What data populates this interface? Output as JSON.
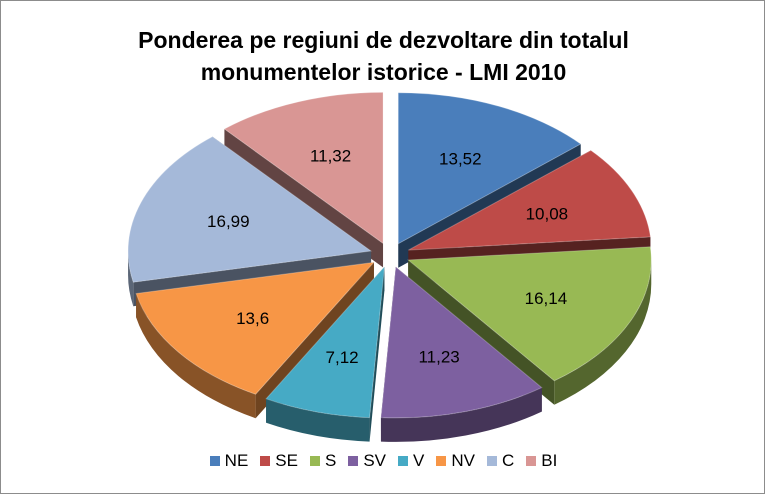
{
  "chart_data": {
    "type": "pie",
    "title_lines": [
      "Ponderea pe regiuni de dezvoltare din totalul",
      "monumentelor istorice - LMI 2010"
    ],
    "categories": [
      "NE",
      "SE",
      "S",
      "SV",
      "V",
      "NV",
      "C",
      "BI"
    ],
    "values": [
      13.52,
      10.08,
      16.14,
      11.23,
      7.12,
      13.6,
      16.99,
      11.32
    ],
    "value_labels": [
      "13,52",
      "10,08",
      "16,14",
      "11,23",
      "7,12",
      "13,6",
      "16,99",
      "11,32"
    ],
    "colors": [
      "#4a7ebb",
      "#be4b48",
      "#98b954",
      "#7d60a0",
      "#46aac5",
      "#f79646",
      "#a5b9d9",
      "#d99694"
    ],
    "exploded": true,
    "three_d": true,
    "legend_position": "bottom"
  }
}
